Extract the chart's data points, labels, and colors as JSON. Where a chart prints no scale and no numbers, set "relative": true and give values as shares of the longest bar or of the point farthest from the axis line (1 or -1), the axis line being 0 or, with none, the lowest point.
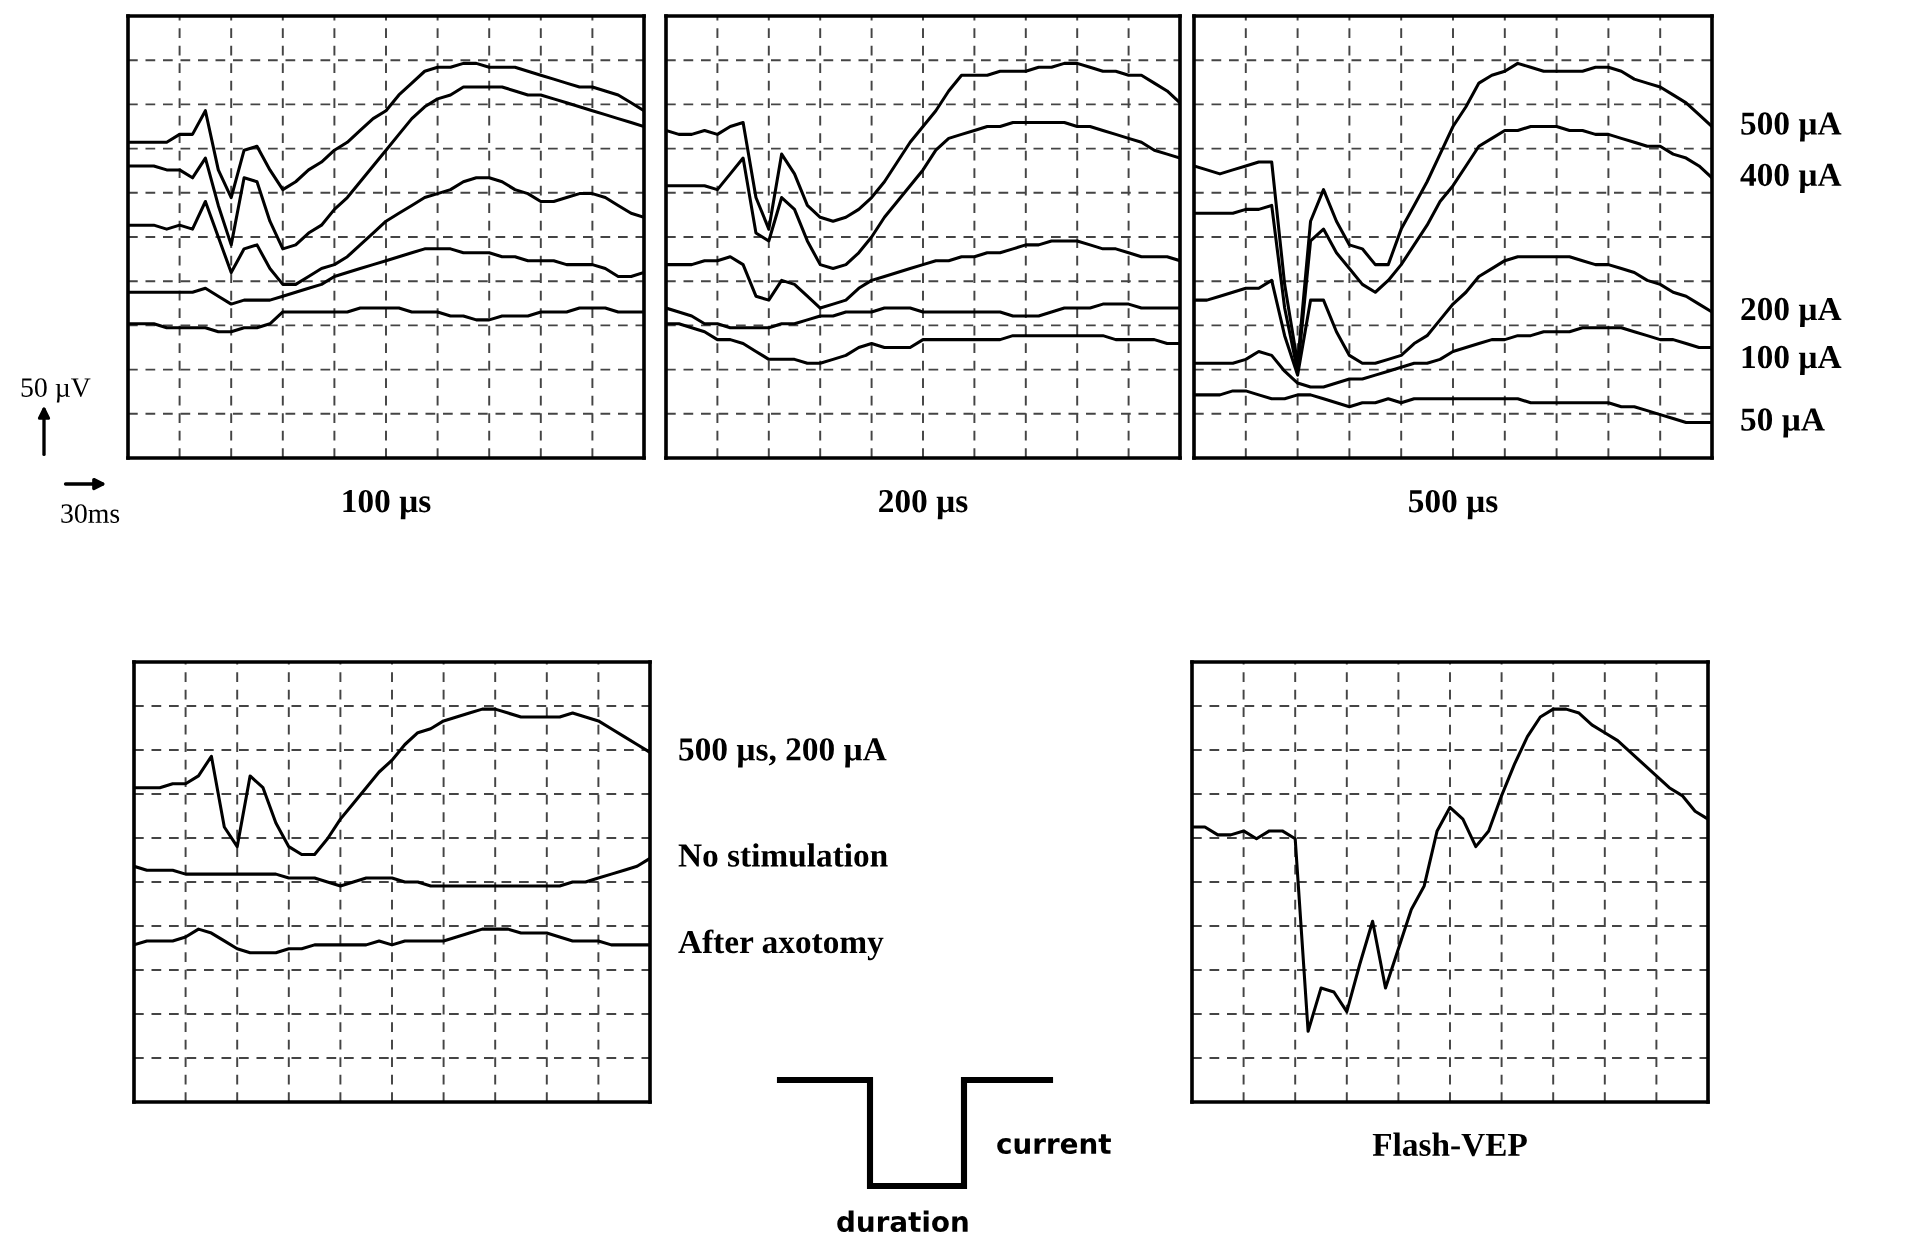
{
  "chart_data": [
    {
      "type": "line",
      "title": "100 µs",
      "relative": true,
      "grid": true,
      "line_style": "solid",
      "annotations": [
        "50 µV",
        "30ms"
      ],
      "categories": [
        null,
        null,
        null,
        null,
        null,
        null,
        null,
        null,
        null,
        null,
        null,
        null,
        null,
        null,
        null,
        null,
        null,
        null,
        null,
        null,
        null,
        null,
        null,
        null,
        null,
        null,
        null,
        null,
        null,
        null,
        null,
        null,
        null,
        null,
        null,
        null,
        null,
        null,
        null,
        null,
        null
      ],
      "series": [
        {
          "color": "#000000",
          "values": [
            0.8,
            0.8,
            0.8,
            0.8,
            0.82,
            0.82,
            0.88,
            0.73,
            0.66,
            0.78,
            0.79,
            0.73,
            0.68,
            0.7,
            0.73,
            0.75,
            0.78,
            0.8,
            0.83,
            0.86,
            0.88,
            0.92,
            0.95,
            0.98,
            0.99,
            0.99,
            1.0,
            1.0,
            0.99,
            0.99,
            0.99,
            0.98,
            0.97,
            0.96,
            0.95,
            0.94,
            0.94,
            0.93,
            0.92,
            0.9,
            0.88
          ]
        },
        {
          "color": "#000000",
          "values": [
            0.74,
            0.74,
            0.74,
            0.73,
            0.73,
            0.71,
            0.76,
            0.64,
            0.54,
            0.71,
            0.7,
            0.6,
            0.53,
            0.54,
            0.57,
            0.59,
            0.63,
            0.66,
            0.7,
            0.74,
            0.78,
            0.82,
            0.86,
            0.89,
            0.91,
            0.92,
            0.94,
            0.94,
            0.94,
            0.94,
            0.93,
            0.92,
            0.92,
            0.91,
            0.9,
            0.89,
            0.88,
            0.87,
            0.86,
            0.85,
            0.84
          ]
        },
        {
          "color": "#000000",
          "values": [
            0.59,
            0.59,
            0.59,
            0.58,
            0.59,
            0.58,
            0.65,
            0.56,
            0.47,
            0.53,
            0.54,
            0.48,
            0.44,
            0.44,
            0.46,
            0.48,
            0.49,
            0.51,
            0.54,
            0.57,
            0.6,
            0.62,
            0.64,
            0.66,
            0.67,
            0.68,
            0.7,
            0.71,
            0.71,
            0.7,
            0.68,
            0.67,
            0.65,
            0.65,
            0.66,
            0.67,
            0.67,
            0.66,
            0.64,
            0.62,
            0.61
          ]
        },
        {
          "color": "#000000",
          "values": [
            0.42,
            0.42,
            0.42,
            0.42,
            0.42,
            0.42,
            0.43,
            0.41,
            0.39,
            0.4,
            0.4,
            0.4,
            0.41,
            0.42,
            0.43,
            0.44,
            0.46,
            0.47,
            0.48,
            0.49,
            0.5,
            0.51,
            0.52,
            0.53,
            0.53,
            0.53,
            0.52,
            0.52,
            0.52,
            0.51,
            0.51,
            0.5,
            0.5,
            0.5,
            0.49,
            0.49,
            0.49,
            0.48,
            0.46,
            0.46,
            0.47
          ]
        },
        {
          "color": "#000000",
          "values": [
            0.34,
            0.34,
            0.34,
            0.33,
            0.33,
            0.33,
            0.33,
            0.32,
            0.32,
            0.33,
            0.33,
            0.34,
            0.37,
            0.37,
            0.37,
            0.37,
            0.37,
            0.37,
            0.38,
            0.38,
            0.38,
            0.38,
            0.37,
            0.37,
            0.37,
            0.36,
            0.36,
            0.35,
            0.35,
            0.36,
            0.36,
            0.36,
            0.37,
            0.37,
            0.37,
            0.38,
            0.38,
            0.38,
            0.37,
            0.37,
            0.37
          ]
        }
      ]
    },
    {
      "type": "line",
      "title": "200 µs",
      "relative": true,
      "grid": true,
      "line_style": "solid",
      "categories": [
        null,
        null,
        null,
        null,
        null,
        null,
        null,
        null,
        null,
        null,
        null,
        null,
        null,
        null,
        null,
        null,
        null,
        null,
        null,
        null,
        null,
        null,
        null,
        null,
        null,
        null,
        null,
        null,
        null,
        null,
        null,
        null,
        null,
        null,
        null,
        null,
        null,
        null,
        null,
        null,
        null
      ],
      "series": [
        {
          "color": "#000000",
          "values": [
            0.83,
            0.82,
            0.82,
            0.83,
            0.82,
            0.84,
            0.85,
            0.66,
            0.58,
            0.77,
            0.72,
            0.64,
            0.61,
            0.6,
            0.61,
            0.63,
            0.66,
            0.7,
            0.75,
            0.8,
            0.84,
            0.88,
            0.93,
            0.97,
            0.97,
            0.97,
            0.98,
            0.98,
            0.98,
            0.99,
            0.99,
            1.0,
            1.0,
            0.99,
            0.98,
            0.98,
            0.97,
            0.97,
            0.95,
            0.93,
            0.9
          ]
        },
        {
          "color": "#000000",
          "values": [
            0.69,
            0.69,
            0.69,
            0.69,
            0.68,
            0.72,
            0.76,
            0.57,
            0.55,
            0.66,
            0.63,
            0.55,
            0.49,
            0.48,
            0.49,
            0.52,
            0.56,
            0.61,
            0.65,
            0.69,
            0.73,
            0.78,
            0.81,
            0.82,
            0.83,
            0.84,
            0.84,
            0.85,
            0.85,
            0.85,
            0.85,
            0.85,
            0.84,
            0.84,
            0.83,
            0.82,
            0.81,
            0.8,
            0.78,
            0.77,
            0.76
          ]
        },
        {
          "color": "#000000",
          "values": [
            0.49,
            0.49,
            0.49,
            0.5,
            0.5,
            0.51,
            0.49,
            0.41,
            0.4,
            0.45,
            0.44,
            0.41,
            0.38,
            0.39,
            0.4,
            0.43,
            0.45,
            0.46,
            0.47,
            0.48,
            0.49,
            0.5,
            0.5,
            0.51,
            0.51,
            0.52,
            0.52,
            0.53,
            0.54,
            0.54,
            0.55,
            0.55,
            0.55,
            0.54,
            0.53,
            0.53,
            0.52,
            0.51,
            0.51,
            0.51,
            0.5
          ]
        },
        {
          "color": "#000000",
          "values": [
            0.38,
            0.37,
            0.36,
            0.34,
            0.34,
            0.33,
            0.33,
            0.33,
            0.33,
            0.34,
            0.34,
            0.35,
            0.36,
            0.36,
            0.37,
            0.37,
            0.37,
            0.38,
            0.38,
            0.38,
            0.37,
            0.37,
            0.37,
            0.37,
            0.37,
            0.37,
            0.37,
            0.36,
            0.36,
            0.36,
            0.37,
            0.38,
            0.38,
            0.38,
            0.39,
            0.39,
            0.39,
            0.38,
            0.38,
            0.38,
            0.38
          ]
        },
        {
          "color": "#000000",
          "values": [
            0.34,
            0.34,
            0.33,
            0.32,
            0.3,
            0.3,
            0.29,
            0.27,
            0.25,
            0.25,
            0.25,
            0.24,
            0.24,
            0.25,
            0.26,
            0.28,
            0.29,
            0.28,
            0.28,
            0.28,
            0.3,
            0.3,
            0.3,
            0.3,
            0.3,
            0.3,
            0.3,
            0.31,
            0.31,
            0.31,
            0.31,
            0.31,
            0.31,
            0.31,
            0.31,
            0.3,
            0.3,
            0.3,
            0.3,
            0.29,
            0.29
          ]
        }
      ]
    },
    {
      "type": "line",
      "title": "500 µs",
      "relative": true,
      "grid": true,
      "line_style": "solid",
      "categories": [
        null,
        null,
        null,
        null,
        null,
        null,
        null,
        null,
        null,
        null,
        null,
        null,
        null,
        null,
        null,
        null,
        null,
        null,
        null,
        null,
        null,
        null,
        null,
        null,
        null,
        null,
        null,
        null,
        null,
        null,
        null,
        null,
        null,
        null,
        null,
        null,
        null,
        null,
        null,
        null,
        null
      ],
      "series": [
        {
          "name": "500 µA",
          "color": "#000000",
          "values": [
            0.74,
            0.73,
            0.72,
            0.73,
            0.74,
            0.75,
            0.75,
            0.44,
            0.24,
            0.6,
            0.68,
            0.6,
            0.54,
            0.53,
            0.49,
            0.49,
            0.58,
            0.64,
            0.7,
            0.77,
            0.84,
            0.89,
            0.95,
            0.97,
            0.98,
            1.0,
            0.99,
            0.98,
            0.98,
            0.98,
            0.98,
            0.99,
            0.99,
            0.98,
            0.96,
            0.95,
            0.94,
            0.92,
            0.9,
            0.87,
            0.84
          ]
        },
        {
          "name": "400 µA",
          "color": "#000000",
          "values": [
            0.62,
            0.62,
            0.62,
            0.62,
            0.63,
            0.63,
            0.64,
            0.38,
            0.22,
            0.55,
            0.58,
            0.52,
            0.48,
            0.44,
            0.42,
            0.45,
            0.49,
            0.54,
            0.59,
            0.65,
            0.69,
            0.74,
            0.79,
            0.81,
            0.83,
            0.83,
            0.84,
            0.84,
            0.84,
            0.83,
            0.83,
            0.82,
            0.82,
            0.81,
            0.8,
            0.79,
            0.79,
            0.77,
            0.76,
            0.74,
            0.71
          ]
        },
        {
          "name": "200 µA",
          "color": "#000000",
          "values": [
            0.4,
            0.4,
            0.41,
            0.42,
            0.43,
            0.43,
            0.45,
            0.31,
            0.21,
            0.4,
            0.4,
            0.32,
            0.26,
            0.24,
            0.24,
            0.25,
            0.26,
            0.29,
            0.31,
            0.35,
            0.39,
            0.42,
            0.46,
            0.48,
            0.5,
            0.51,
            0.51,
            0.51,
            0.51,
            0.51,
            0.5,
            0.49,
            0.49,
            0.48,
            0.47,
            0.45,
            0.44,
            0.42,
            0.41,
            0.39,
            0.37
          ]
        },
        {
          "name": "100 µA",
          "color": "#000000",
          "values": [
            0.24,
            0.24,
            0.24,
            0.24,
            0.25,
            0.27,
            0.26,
            0.22,
            0.19,
            0.18,
            0.18,
            0.19,
            0.2,
            0.2,
            0.21,
            0.22,
            0.23,
            0.24,
            0.24,
            0.25,
            0.27,
            0.28,
            0.29,
            0.3,
            0.3,
            0.31,
            0.31,
            0.32,
            0.32,
            0.32,
            0.33,
            0.33,
            0.33,
            0.33,
            0.32,
            0.31,
            0.3,
            0.3,
            0.29,
            0.28,
            0.28
          ]
        },
        {
          "name": "50 µA",
          "color": "#000000",
          "values": [
            0.16,
            0.16,
            0.16,
            0.17,
            0.17,
            0.16,
            0.15,
            0.15,
            0.16,
            0.16,
            0.15,
            0.14,
            0.13,
            0.14,
            0.14,
            0.15,
            0.14,
            0.15,
            0.15,
            0.15,
            0.15,
            0.15,
            0.15,
            0.15,
            0.15,
            0.15,
            0.14,
            0.14,
            0.14,
            0.14,
            0.14,
            0.14,
            0.14,
            0.13,
            0.13,
            0.12,
            0.11,
            0.1,
            0.09,
            0.09,
            0.09
          ]
        }
      ]
    },
    {
      "type": "line",
      "relative": true,
      "grid": true,
      "line_style": "solid",
      "annotations": [
        "current",
        "duration"
      ],
      "categories": [
        null,
        null,
        null,
        null,
        null,
        null,
        null,
        null,
        null,
        null,
        null,
        null,
        null,
        null,
        null,
        null,
        null,
        null,
        null,
        null,
        null,
        null,
        null,
        null,
        null,
        null,
        null,
        null,
        null,
        null,
        null,
        null,
        null,
        null,
        null,
        null,
        null,
        null,
        null,
        null,
        null
      ],
      "series": [
        {
          "name": "500 µs, 200 µA",
          "color": "#000000",
          "values": [
            0.8,
            0.8,
            0.8,
            0.81,
            0.81,
            0.83,
            0.88,
            0.7,
            0.65,
            0.83,
            0.8,
            0.71,
            0.65,
            0.63,
            0.63,
            0.67,
            0.72,
            0.76,
            0.8,
            0.84,
            0.87,
            0.91,
            0.94,
            0.95,
            0.97,
            0.98,
            0.99,
            1.0,
            1.0,
            0.99,
            0.98,
            0.98,
            0.98,
            0.98,
            0.99,
            0.98,
            0.97,
            0.95,
            0.93,
            0.91,
            0.89
          ]
        },
        {
          "name": "No stimulation",
          "color": "#000000",
          "values": [
            0.6,
            0.59,
            0.59,
            0.59,
            0.58,
            0.58,
            0.58,
            0.58,
            0.58,
            0.58,
            0.58,
            0.58,
            0.57,
            0.57,
            0.57,
            0.56,
            0.55,
            0.56,
            0.57,
            0.57,
            0.57,
            0.56,
            0.56,
            0.55,
            0.55,
            0.55,
            0.55,
            0.55,
            0.55,
            0.55,
            0.55,
            0.55,
            0.55,
            0.55,
            0.56,
            0.56,
            0.57,
            0.58,
            0.59,
            0.6,
            0.62
          ]
        },
        {
          "name": "After axotomy",
          "color": "#000000",
          "values": [
            0.4,
            0.41,
            0.41,
            0.41,
            0.42,
            0.44,
            0.43,
            0.41,
            0.39,
            0.38,
            0.38,
            0.38,
            0.39,
            0.39,
            0.4,
            0.4,
            0.4,
            0.4,
            0.4,
            0.41,
            0.4,
            0.41,
            0.41,
            0.41,
            0.41,
            0.42,
            0.43,
            0.44,
            0.44,
            0.44,
            0.43,
            0.43,
            0.43,
            0.42,
            0.41,
            0.41,
            0.41,
            0.4,
            0.4,
            0.4,
            0.4
          ]
        }
      ]
    },
    {
      "type": "line",
      "title": "Flash-VEP",
      "relative": true,
      "grid": true,
      "line_style": "solid",
      "categories": [
        null,
        null,
        null,
        null,
        null,
        null,
        null,
        null,
        null,
        null,
        null,
        null,
        null,
        null,
        null,
        null,
        null,
        null,
        null,
        null,
        null,
        null,
        null,
        null,
        null,
        null,
        null,
        null,
        null,
        null,
        null,
        null,
        null,
        null,
        null,
        null,
        null,
        null,
        null,
        null,
        null
      ],
      "series": [
        {
          "color": "#000000",
          "values": [
            0.7,
            0.7,
            0.68,
            0.68,
            0.69,
            0.67,
            0.69,
            0.69,
            0.67,
            0.18,
            0.29,
            0.28,
            0.23,
            0.35,
            0.46,
            0.29,
            0.39,
            0.49,
            0.55,
            0.69,
            0.75,
            0.72,
            0.65,
            0.69,
            0.78,
            0.86,
            0.93,
            0.98,
            1.0,
            1.0,
            0.99,
            0.96,
            0.94,
            0.92,
            0.89,
            0.86,
            0.83,
            0.8,
            0.78,
            0.74,
            0.72
          ]
        }
      ]
    }
  ]
}
